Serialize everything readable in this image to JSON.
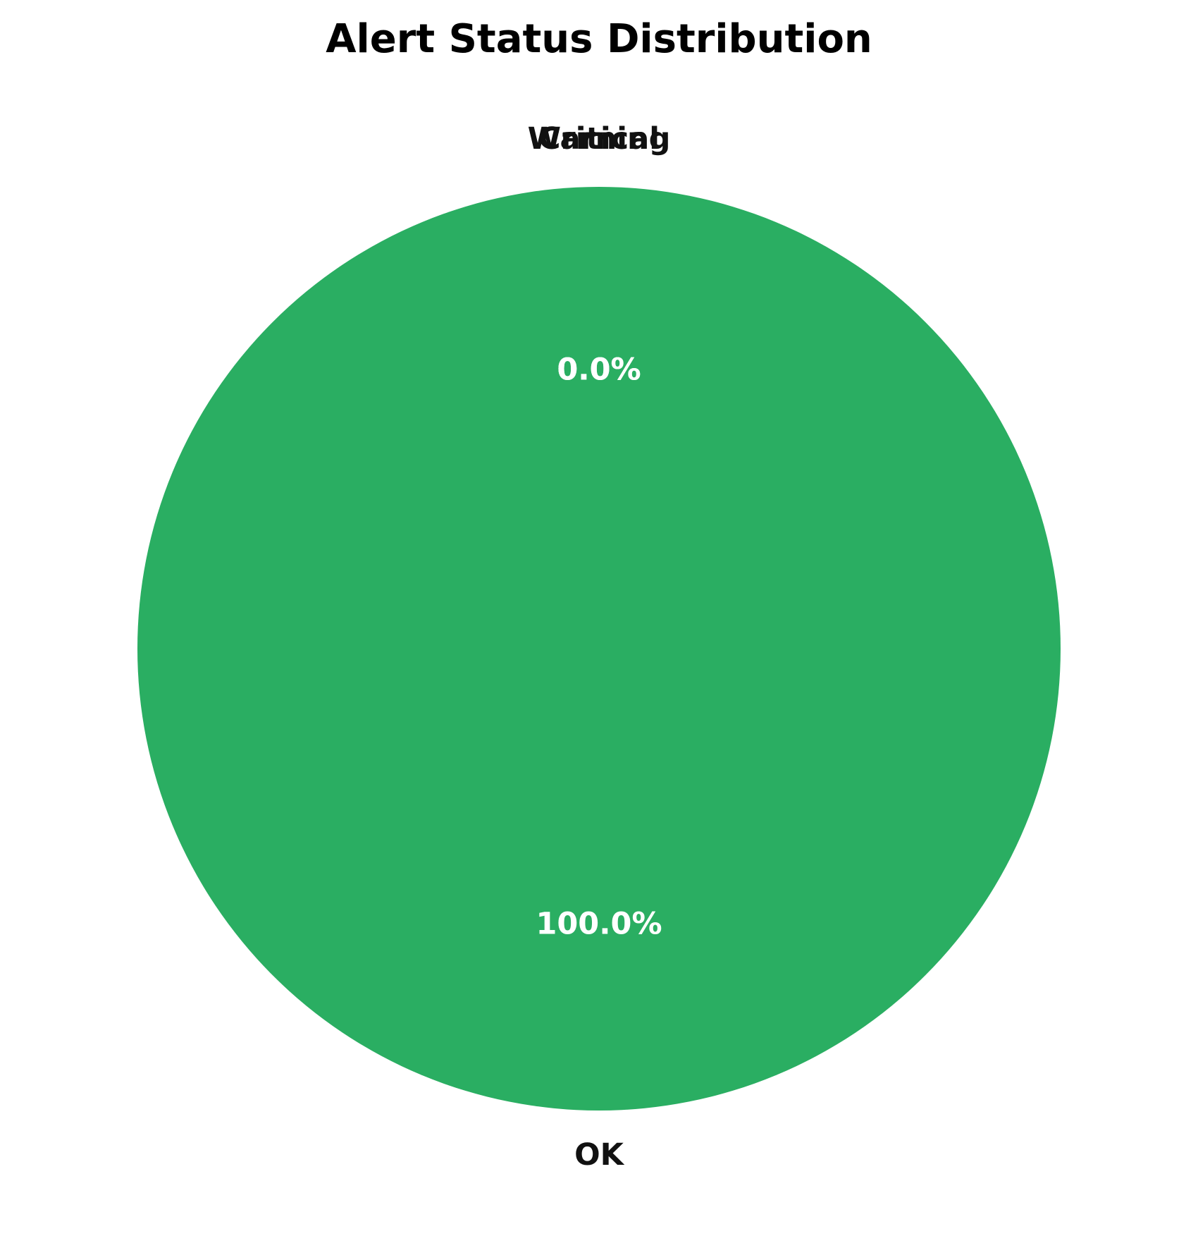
{
  "chart_data": {
    "type": "pie",
    "title": "Alert Status Distribution",
    "start_angle_deg": 90,
    "direction": "counterclockwise",
    "slices": [
      {
        "label": "OK",
        "value": 100.0,
        "pct_label": "100.0%",
        "color": "#2aae62"
      },
      {
        "label": "Warning",
        "value": 0.0,
        "pct_label": "0.0%",
        "color": "#f39c12"
      },
      {
        "label": "Critical",
        "value": 0.0,
        "pct_label": "0.0%",
        "color": "#e74c3c"
      }
    ],
    "pct_label_color": "#ffffff"
  }
}
